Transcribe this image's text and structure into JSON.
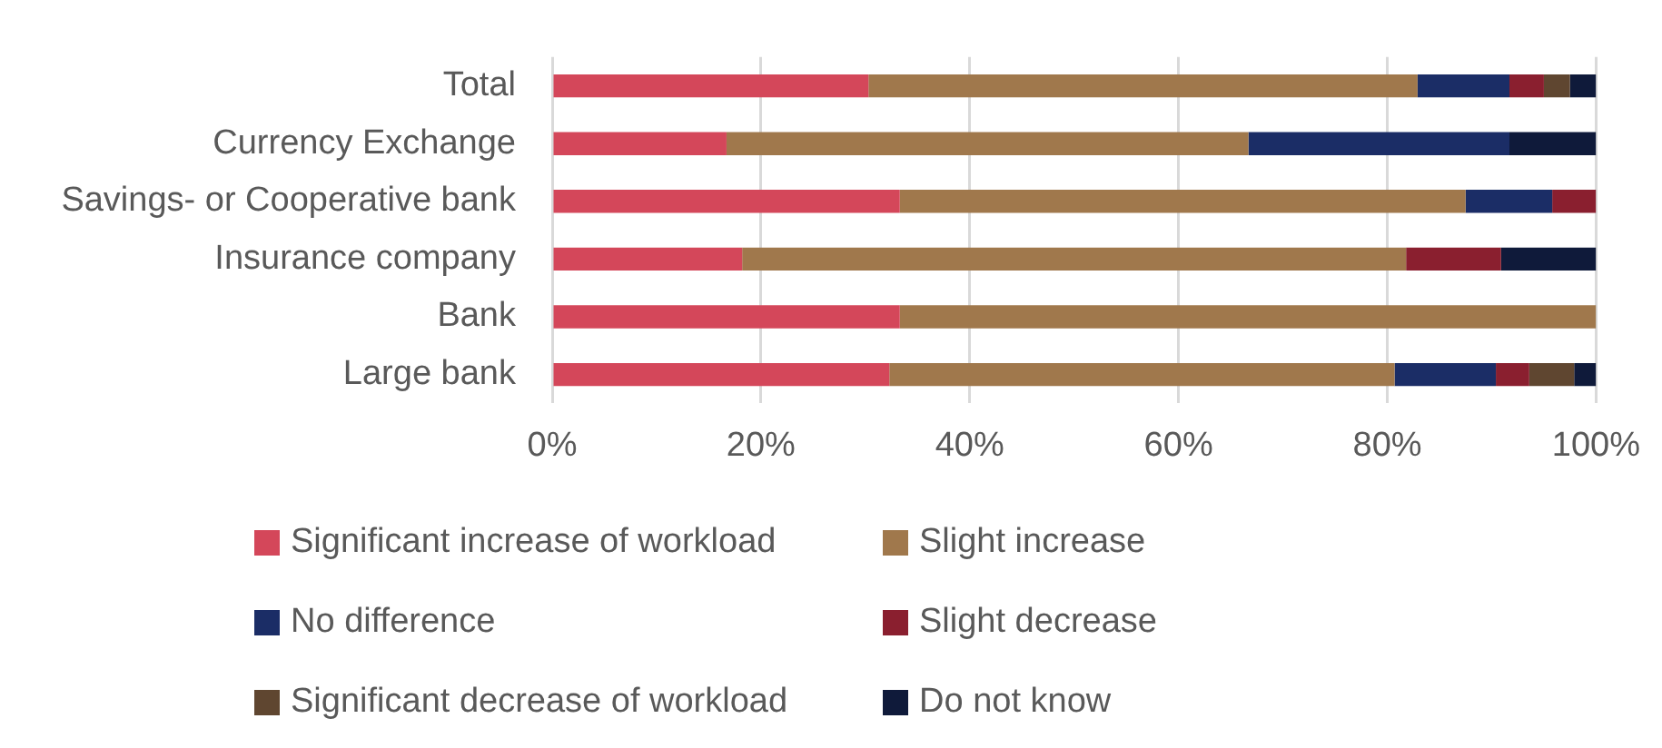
{
  "chart_data": {
    "type": "bar",
    "orientation": "horizontal",
    "stacked": true,
    "categories": [
      "Total",
      "Currency Exchange",
      "Savings- or Cooperative bank",
      "Insurance company",
      "Bank",
      "Large bank"
    ],
    "series": [
      {
        "name": "Significant increase of workload",
        "color": "#d4475a",
        "values": [
          30.3,
          16.7,
          33.3,
          18.2,
          33.3,
          32.3
        ]
      },
      {
        "name": "Slight increase",
        "color": "#a0784c",
        "values": [
          52.6,
          50,
          54.2,
          63.6,
          66.7,
          48.4
        ]
      },
      {
        "name": "No difference",
        "color": "#1b2d66",
        "values": [
          8.8,
          25,
          8.3,
          0,
          0,
          9.7
        ]
      },
      {
        "name": "Slight decrease",
        "color": "#8a1f2f",
        "values": [
          3.3,
          0,
          4.2,
          9.1,
          0,
          3.2
        ]
      },
      {
        "name": "Significant decrease of workload",
        "color": "#5f4630",
        "values": [
          2.5,
          0,
          0,
          0,
          0,
          4.3
        ]
      },
      {
        "name": "Do not know",
        "color": "#0f1a3a",
        "values": [
          2.5,
          8.3,
          0,
          9.1,
          0,
          2.1
        ]
      }
    ],
    "xlim": [
      0,
      100
    ],
    "xticks": [
      {
        "value": 0,
        "label": "0%"
      },
      {
        "value": 20,
        "label": "20%"
      },
      {
        "value": 40,
        "label": "40%"
      },
      {
        "value": 60,
        "label": "60%"
      },
      {
        "value": 80,
        "label": "80%"
      },
      {
        "value": 100,
        "label": "100%"
      }
    ],
    "grid": "x",
    "legend": "bottom"
  }
}
